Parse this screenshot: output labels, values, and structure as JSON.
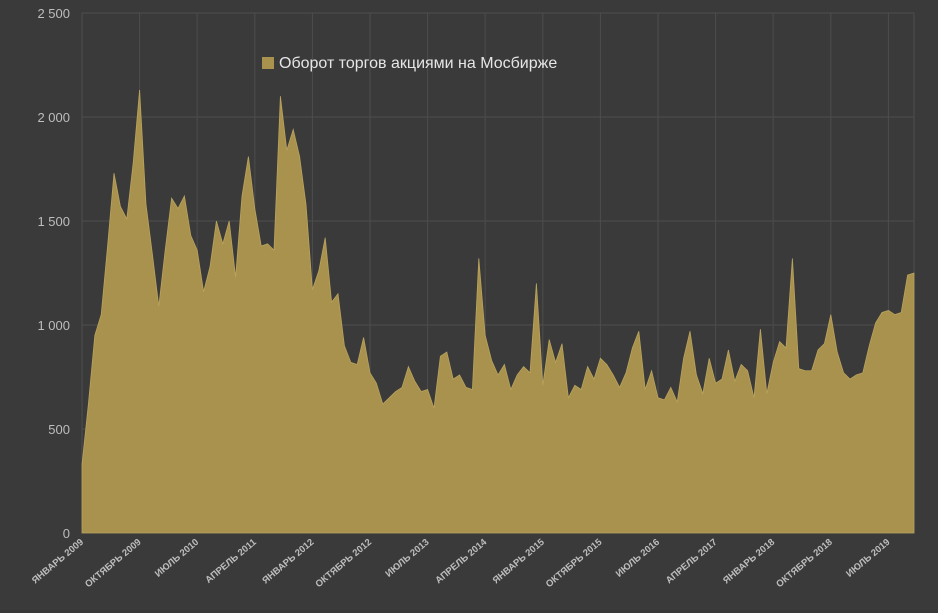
{
  "chart_data": {
    "type": "area",
    "title": "",
    "xlabel": "",
    "ylabel": "",
    "ylim": [
      0,
      2500
    ],
    "y_ticks": [
      0,
      500,
      1000,
      1500,
      2000,
      2500
    ],
    "y_tick_labels": [
      "0",
      "500",
      "1 000",
      "1 500",
      "2 000",
      "2 500"
    ],
    "grid": true,
    "legend_position": "top-center",
    "colors": {
      "background": "#3a3a3a",
      "series": "#a8924e",
      "grid": "#4d4d4d",
      "text": "#bdbdbd"
    },
    "x_tick_labels": [
      {
        "label": "ЯНВАРЬ 2009",
        "index": 0
      },
      {
        "label": "ОКТЯБРЬ 2009",
        "index": 9
      },
      {
        "label": "ИЮЛЬ 2010",
        "index": 18
      },
      {
        "label": "АПРЕЛЬ 2011",
        "index": 27
      },
      {
        "label": "ЯНВАРЬ 2012",
        "index": 36
      },
      {
        "label": "ОКТЯБРЬ 2012",
        "index": 45
      },
      {
        "label": "ИЮЛЬ 2013",
        "index": 54
      },
      {
        "label": "АПРЕЛЬ 2014",
        "index": 63
      },
      {
        "label": "ЯНВАРЬ 2015",
        "index": 72
      },
      {
        "label": "ОКТЯБРЬ 2015",
        "index": 81
      },
      {
        "label": "ИЮЛЬ 2016",
        "index": 90
      },
      {
        "label": "АПРЕЛЬ 2017",
        "index": 99
      },
      {
        "label": "ЯНВАРЬ 2018",
        "index": 108
      },
      {
        "label": "ОКТЯБРЬ 2018",
        "index": 117
      },
      {
        "label": "ИЮЛЬ 2019",
        "index": 126
      }
    ],
    "x_start": "2009-01",
    "x_end": "2019-12",
    "series": [
      {
        "name": "Оборот торгов акциями на Мосбирже",
        "values": [
          330,
          620,
          950,
          1050,
          1380,
          1730,
          1570,
          1510,
          1780,
          2130,
          1580,
          1340,
          1090,
          1360,
          1610,
          1560,
          1620,
          1430,
          1360,
          1160,
          1280,
          1500,
          1390,
          1500,
          1230,
          1620,
          1810,
          1560,
          1380,
          1390,
          1360,
          2100,
          1840,
          1940,
          1810,
          1580,
          1170,
          1260,
          1420,
          1110,
          1150,
          900,
          820,
          810,
          940,
          770,
          720,
          620,
          650,
          680,
          700,
          800,
          730,
          680,
          690,
          600,
          850,
          870,
          740,
          760,
          700,
          690,
          1320,
          950,
          830,
          760,
          810,
          690,
          760,
          800,
          770,
          1200,
          710,
          930,
          820,
          910,
          650,
          710,
          690,
          800,
          740,
          840,
          810,
          760,
          700,
          770,
          890,
          970,
          690,
          780,
          650,
          640,
          700,
          630,
          840,
          970,
          760,
          670,
          840,
          720,
          740,
          880,
          730,
          810,
          780,
          650,
          980,
          670,
          820,
          920,
          890,
          1320,
          790,
          780,
          780,
          880,
          910,
          1050,
          870,
          770,
          740,
          760,
          770,
          900,
          1010,
          1060,
          1070,
          1050,
          1060,
          1240,
          1250
        ]
      }
    ]
  }
}
